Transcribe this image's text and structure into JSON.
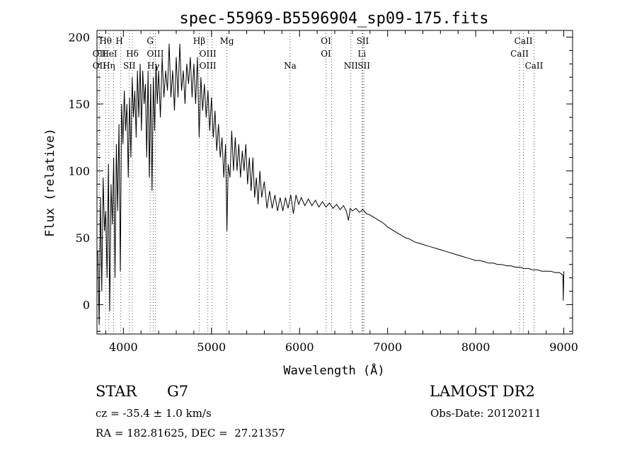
{
  "chart_data": {
    "type": "line",
    "title": "spec-55969-B5596904_sp09-175.fits",
    "xlabel": "Wavelength (Å)",
    "ylabel": "Flux (relative)",
    "xlim": [
      3700,
      9100
    ],
    "ylim": [
      -22,
      205
    ],
    "x_ticks": [
      4000,
      5000,
      6000,
      7000,
      8000,
      9000
    ],
    "y_ticks": [
      0,
      50,
      100,
      150,
      200
    ],
    "grid": false,
    "series": [
      {
        "color": "#000000",
        "points": [
          [
            3710,
            40
          ],
          [
            3725,
            -15
          ],
          [
            3740,
            80
          ],
          [
            3755,
            10
          ],
          [
            3770,
            95
          ],
          [
            3785,
            55
          ],
          [
            3800,
            70
          ],
          [
            3815,
            20
          ],
          [
            3830,
            105
          ],
          [
            3845,
            -5
          ],
          [
            3860,
            90
          ],
          [
            3875,
            60
          ],
          [
            3890,
            110
          ],
          [
            3905,
            20
          ],
          [
            3920,
            120
          ],
          [
            3935,
            70
          ],
          [
            3950,
            135
          ],
          [
            3965,
            25
          ],
          [
            3980,
            150
          ],
          [
            3995,
            120
          ],
          [
            4010,
            160
          ],
          [
            4025,
            130
          ],
          [
            4040,
            150
          ],
          [
            4055,
            95
          ],
          [
            4070,
            155
          ],
          [
            4085,
            110
          ],
          [
            4100,
            170
          ],
          [
            4115,
            140
          ],
          [
            4130,
            160
          ],
          [
            4145,
            125
          ],
          [
            4160,
            175
          ],
          [
            4175,
            140
          ],
          [
            4190,
            180
          ],
          [
            4205,
            130
          ],
          [
            4220,
            175
          ],
          [
            4235,
            150
          ],
          [
            4250,
            165
          ],
          [
            4265,
            110
          ],
          [
            4280,
            175
          ],
          [
            4295,
            95
          ],
          [
            4310,
            165
          ],
          [
            4325,
            85
          ],
          [
            4340,
            170
          ],
          [
            4355,
            130
          ],
          [
            4370,
            180
          ],
          [
            4385,
            150
          ],
          [
            4400,
            175
          ],
          [
            4420,
            140
          ],
          [
            4440,
            185
          ],
          [
            4460,
            155
          ],
          [
            4480,
            175
          ],
          [
            4500,
            160
          ],
          [
            4520,
            195
          ],
          [
            4540,
            155
          ],
          [
            4560,
            175
          ],
          [
            4580,
            145
          ],
          [
            4600,
            185
          ],
          [
            4620,
            155
          ],
          [
            4640,
            195
          ],
          [
            4660,
            160
          ],
          [
            4680,
            175
          ],
          [
            4700,
            150
          ],
          [
            4720,
            180
          ],
          [
            4740,
            165
          ],
          [
            4760,
            185
          ],
          [
            4780,
            155
          ],
          [
            4800,
            180
          ],
          [
            4820,
            150
          ],
          [
            4840,
            185
          ],
          [
            4860,
            125
          ],
          [
            4880,
            170
          ],
          [
            4900,
            145
          ],
          [
            4920,
            165
          ],
          [
            4940,
            140
          ],
          [
            4960,
            160
          ],
          [
            4980,
            130
          ],
          [
            5000,
            155
          ],
          [
            5020,
            125
          ],
          [
            5040,
            145
          ],
          [
            5060,
            115
          ],
          [
            5080,
            135
          ],
          [
            5100,
            110
          ],
          [
            5120,
            125
          ],
          [
            5140,
            95
          ],
          [
            5160,
            120
          ],
          [
            5175,
            55
          ],
          [
            5190,
            105
          ],
          [
            5210,
            95
          ],
          [
            5230,
            130
          ],
          [
            5250,
            100
          ],
          [
            5270,
            125
          ],
          [
            5290,
            100
          ],
          [
            5310,
            120
          ],
          [
            5330,
            95
          ],
          [
            5350,
            115
          ],
          [
            5370,
            100
          ],
          [
            5390,
            120
          ],
          [
            5410,
            90
          ],
          [
            5430,
            110
          ],
          [
            5450,
            85
          ],
          [
            5470,
            110
          ],
          [
            5490,
            80
          ],
          [
            5510,
            95
          ],
          [
            5530,
            75
          ],
          [
            5550,
            100
          ],
          [
            5570,
            80
          ],
          [
            5600,
            92
          ],
          [
            5630,
            72
          ],
          [
            5660,
            85
          ],
          [
            5690,
            72
          ],
          [
            5720,
            82
          ],
          [
            5750,
            70
          ],
          [
            5780,
            80
          ],
          [
            5810,
            70
          ],
          [
            5840,
            80
          ],
          [
            5870,
            72
          ],
          [
            5900,
            82
          ],
          [
            5930,
            68
          ],
          [
            5960,
            82
          ],
          [
            5990,
            75
          ],
          [
            6020,
            80
          ],
          [
            6060,
            74
          ],
          [
            6100,
            79
          ],
          [
            6140,
            74
          ],
          [
            6180,
            78
          ],
          [
            6220,
            73
          ],
          [
            6260,
            77
          ],
          [
            6300,
            73
          ],
          [
            6340,
            76
          ],
          [
            6380,
            72
          ],
          [
            6420,
            75
          ],
          [
            6460,
            71
          ],
          [
            6500,
            74
          ],
          [
            6530,
            70
          ],
          [
            6555,
            63
          ],
          [
            6575,
            72
          ],
          [
            6600,
            70
          ],
          [
            6640,
            72
          ],
          [
            6680,
            69
          ],
          [
            6720,
            71
          ],
          [
            6760,
            68
          ],
          [
            6800,
            67
          ],
          [
            6850,
            65
          ],
          [
            6900,
            63
          ],
          [
            6950,
            61
          ],
          [
            7000,
            58
          ],
          [
            7050,
            56
          ],
          [
            7100,
            54
          ],
          [
            7150,
            52
          ],
          [
            7200,
            50
          ],
          [
            7250,
            49
          ],
          [
            7300,
            47
          ],
          [
            7350,
            46
          ],
          [
            7400,
            45
          ],
          [
            7450,
            44
          ],
          [
            7500,
            43
          ],
          [
            7550,
            42
          ],
          [
            7600,
            41
          ],
          [
            7650,
            40
          ],
          [
            7700,
            39
          ],
          [
            7750,
            38
          ],
          [
            7800,
            37
          ],
          [
            7850,
            36
          ],
          [
            7900,
            35
          ],
          [
            7950,
            34
          ],
          [
            8000,
            33
          ],
          [
            8050,
            33
          ],
          [
            8100,
            32
          ],
          [
            8150,
            31
          ],
          [
            8200,
            31
          ],
          [
            8250,
            30
          ],
          [
            8300,
            30
          ],
          [
            8350,
            29
          ],
          [
            8400,
            29
          ],
          [
            8450,
            28
          ],
          [
            8500,
            28
          ],
          [
            8550,
            27
          ],
          [
            8600,
            27
          ],
          [
            8650,
            26
          ],
          [
            8700,
            26
          ],
          [
            8750,
            25
          ],
          [
            8800,
            25
          ],
          [
            8850,
            25
          ],
          [
            8900,
            24
          ],
          [
            8950,
            24
          ],
          [
            8990,
            22
          ],
          [
            8995,
            3
          ],
          [
            9000,
            25
          ]
        ]
      }
    ],
    "lines": [
      {
        "label": "Hθ",
        "x": 3798,
        "row": 0,
        "dx": 0
      },
      {
        "label": "H",
        "x": 3970,
        "row": 0,
        "dx": -2
      },
      {
        "label": "G",
        "x": 4304,
        "row": 0,
        "dx": 0
      },
      {
        "label": "Hβ",
        "x": 4861,
        "row": 0,
        "dx": 0
      },
      {
        "label": "Mg",
        "x": 5175,
        "row": 0,
        "dx": 0
      },
      {
        "label": "OI",
        "x": 6300,
        "row": 0,
        "dx": 0
      },
      {
        "label": "SII",
        "x": 6717,
        "row": 0,
        "dx": 0
      },
      {
        "label": "CaII",
        "x": 8542,
        "row": 0,
        "dx": 0
      },
      {
        "label": "OII",
        "x": 3727,
        "row": 1,
        "dx": 0
      },
      {
        "label": "HeI",
        "x": 3889,
        "row": 1,
        "dx": -6
      },
      {
        "label": "Hδ",
        "x": 4102,
        "row": 1,
        "dx": 0
      },
      {
        "label": "OIII",
        "x": 4363,
        "row": 1,
        "dx": 0
      },
      {
        "label": "OIII",
        "x": 4959,
        "row": 1,
        "dx": 0
      },
      {
        "label": "OI",
        "x": 6364,
        "row": 1,
        "dx": -8
      },
      {
        "label": "Li",
        "x": 6708,
        "row": 1,
        "dx": 0
      },
      {
        "label": "CaII",
        "x": 8498,
        "row": 1,
        "dx": 0
      },
      {
        "label": "OII",
        "x": 3727,
        "row": 2,
        "dx": 0
      },
      {
        "label": "Hη",
        "x": 3835,
        "row": 2,
        "dx": 0
      },
      {
        "label": "SII",
        "x": 4068,
        "row": 2,
        "dx": 0
      },
      {
        "label": "Hγ",
        "x": 4340,
        "row": 2,
        "dx": 0
      },
      {
        "label": "OIII",
        "x": 5007,
        "row": 2,
        "dx": -6
      },
      {
        "label": "Na",
        "x": 5893,
        "row": 2,
        "dx": 0
      },
      {
        "label": "NII",
        "x": 6583,
        "row": 2,
        "dx": 0
      },
      {
        "label": "SII",
        "x": 6731,
        "row": 2,
        "dx": 0
      },
      {
        "label": "CaII",
        "x": 8662,
        "row": 2,
        "dx": 0
      }
    ]
  },
  "info": {
    "object_type": "STAR",
    "subclass": "G7",
    "survey": "LAMOST DR2",
    "velocity": "cz = -35.4 ± 1.0 km/s",
    "obs_date": "Obs-Date: 20120211",
    "coords": "RA = 182.81625, DEC =  27.21357"
  }
}
